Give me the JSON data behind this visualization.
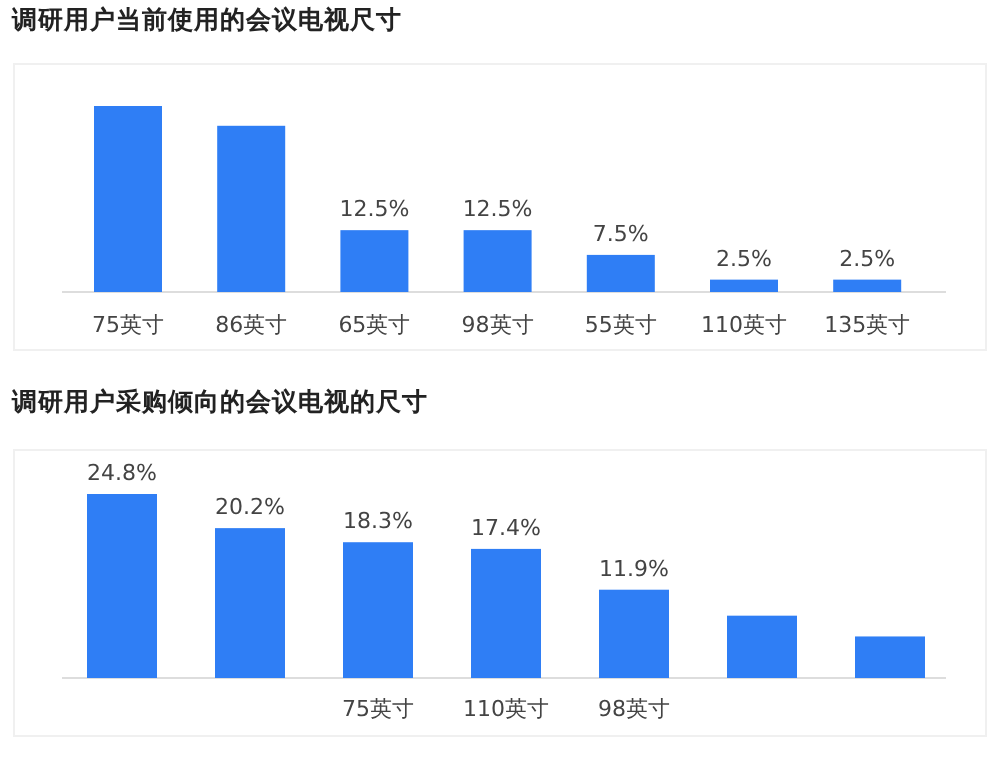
{
  "chart_data": [
    {
      "type": "bar",
      "title": "调研用户当前使用的会议电视尺寸",
      "categories": [
        "75英寸",
        "86英寸",
        "65英寸",
        "98英寸",
        "55英寸",
        "110英寸",
        "135英寸"
      ],
      "values": [
        37.6,
        33.6,
        12.5,
        12.5,
        7.5,
        2.5,
        2.5
      ],
      "value_labels": [
        null,
        null,
        "12.5%",
        "12.5%",
        "7.5%",
        "2.5%",
        "2.5%"
      ],
      "color": "#2f7ef5",
      "grid": false
    },
    {
      "type": "bar",
      "title": "调研用户采购倾向的会议电视的尺寸",
      "categories": [
        null,
        null,
        "75英寸",
        "110英寸",
        "98英寸",
        null,
        null
      ],
      "values": [
        24.8,
        20.2,
        18.3,
        17.4,
        11.9,
        8.4,
        5.6
      ],
      "value_labels": [
        "24.8%",
        "20.2%",
        "18.3%",
        "17.4%",
        "11.9%",
        null,
        null
      ],
      "color": "#2f7ef5",
      "grid": false
    }
  ]
}
